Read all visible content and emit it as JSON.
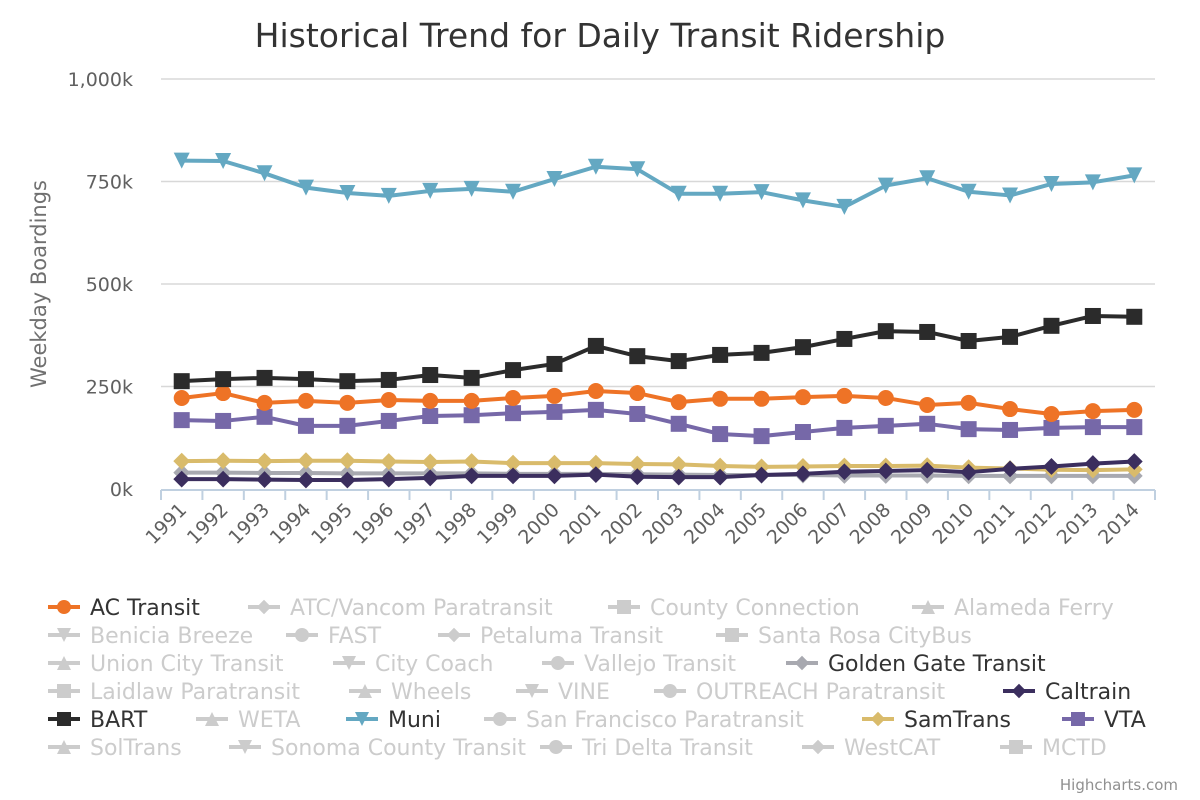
{
  "chart_data": {
    "type": "line",
    "title": "Historical Trend for Daily Transit Ridership",
    "xlabel": "",
    "ylabel": "Weekday Boardings",
    "ylim": [
      0,
      1000000
    ],
    "yticks": [
      {
        "value": 0,
        "label": "0k"
      },
      {
        "value": 250000,
        "label": "250k"
      },
      {
        "value": 500000,
        "label": "500k"
      },
      {
        "value": 750000,
        "label": "750k"
      },
      {
        "value": 1000000,
        "label": "1,000k"
      }
    ],
    "grid": true,
    "legend_position": "bottom",
    "categories": [
      "1991",
      "1992",
      "1993",
      "1994",
      "1995",
      "1996",
      "1997",
      "1998",
      "1999",
      "2000",
      "2001",
      "2002",
      "2003",
      "2004",
      "2005",
      "2006",
      "2007",
      "2008",
      "2009",
      "2010",
      "2011",
      "2012",
      "2013",
      "2014"
    ],
    "series": [
      {
        "name": "AC Transit",
        "visible": true,
        "color": "#ee7326",
        "marker": "circle",
        "values": [
          222000,
          234000,
          210000,
          215000,
          210000,
          217000,
          215000,
          215000,
          222000,
          227000,
          239000,
          234000,
          212000,
          220000,
          220000,
          224000,
          227000,
          222000,
          205000,
          210000,
          195000,
          183000,
          190000,
          193000
        ]
      },
      {
        "name": "ATC/Vancom Paratransit",
        "visible": false,
        "color": "#cccccc",
        "marker": "diamond",
        "values": []
      },
      {
        "name": "County Connection",
        "visible": false,
        "color": "#cccccc",
        "marker": "square",
        "values": []
      },
      {
        "name": "Alameda Ferry",
        "visible": false,
        "color": "#cccccc",
        "marker": "triangle",
        "values": []
      },
      {
        "name": "Benicia Breeze",
        "visible": false,
        "color": "#cccccc",
        "marker": "triangle-down",
        "values": []
      },
      {
        "name": "FAST",
        "visible": false,
        "color": "#cccccc",
        "marker": "circle",
        "values": []
      },
      {
        "name": "Petaluma Transit",
        "visible": false,
        "color": "#cccccc",
        "marker": "diamond",
        "values": []
      },
      {
        "name": "Santa Rosa CityBus",
        "visible": false,
        "color": "#cccccc",
        "marker": "square",
        "values": []
      },
      {
        "name": "Union City Transit",
        "visible": false,
        "color": "#cccccc",
        "marker": "triangle",
        "values": []
      },
      {
        "name": "City Coach",
        "visible": false,
        "color": "#cccccc",
        "marker": "triangle-down",
        "values": []
      },
      {
        "name": "Vallejo Transit",
        "visible": false,
        "color": "#cccccc",
        "marker": "circle",
        "values": []
      },
      {
        "name": "Golden Gate Transit",
        "visible": true,
        "color": "#a8a9b0",
        "marker": "diamond",
        "values": [
          40000,
          40000,
          39000,
          39000,
          38000,
          38000,
          38000,
          38000,
          37000,
          37000,
          37000,
          36000,
          35000,
          34000,
          34000,
          34000,
          33000,
          33000,
          33000,
          32000,
          32000,
          32000,
          32000,
          32000
        ]
      },
      {
        "name": "Laidlaw Paratransit",
        "visible": false,
        "color": "#cccccc",
        "marker": "square",
        "values": []
      },
      {
        "name": "Wheels",
        "visible": false,
        "color": "#cccccc",
        "marker": "triangle",
        "values": []
      },
      {
        "name": "VINE",
        "visible": false,
        "color": "#cccccc",
        "marker": "triangle-down",
        "values": []
      },
      {
        "name": "OUTREACH Paratransit",
        "visible": false,
        "color": "#cccccc",
        "marker": "circle",
        "values": []
      },
      {
        "name": "Caltrain",
        "visible": true,
        "color": "#3b2e5e",
        "marker": "diamond",
        "values": [
          24000,
          24000,
          23000,
          22000,
          22000,
          24000,
          27000,
          32000,
          32000,
          32000,
          35000,
          30000,
          29000,
          29000,
          34000,
          37000,
          42000,
          44000,
          46000,
          41000,
          49000,
          55000,
          62000,
          67000
        ]
      },
      {
        "name": "BART",
        "visible": true,
        "color": "#2b2b2b",
        "marker": "square",
        "values": [
          263000,
          268000,
          271000,
          268000,
          263000,
          266000,
          278000,
          271000,
          290000,
          305000,
          349000,
          324000,
          312000,
          327000,
          332000,
          346000,
          366000,
          385000,
          383000,
          361000,
          371000,
          398000,
          422000,
          420000
        ]
      },
      {
        "name": "WETA",
        "visible": false,
        "color": "#cccccc",
        "marker": "triangle",
        "values": []
      },
      {
        "name": "Muni",
        "visible": true,
        "color": "#64a8c2",
        "marker": "triangle-down",
        "values": [
          801000,
          800000,
          770000,
          735000,
          722000,
          715000,
          727000,
          732000,
          725000,
          756000,
          786000,
          780000,
          720000,
          720000,
          724000,
          704000,
          688000,
          740000,
          758000,
          725000,
          716000,
          744000,
          748000,
          765000
        ]
      },
      {
        "name": "San Francisco Paratransit",
        "visible": false,
        "color": "#cccccc",
        "marker": "circle",
        "values": []
      },
      {
        "name": "SamTrans",
        "visible": true,
        "color": "#d9bb6b",
        "marker": "diamond",
        "values": [
          68000,
          69000,
          68000,
          69000,
          69000,
          67000,
          66000,
          67000,
          63000,
          63000,
          63000,
          61000,
          60000,
          56000,
          54000,
          55000,
          56000,
          56000,
          57000,
          52000,
          50000,
          47000,
          46000,
          48000
        ]
      },
      {
        "name": "VTA",
        "visible": true,
        "color": "#7668a8",
        "marker": "square",
        "values": [
          168000,
          166000,
          176000,
          154000,
          154000,
          166000,
          178000,
          180000,
          185000,
          188000,
          193000,
          183000,
          159000,
          134000,
          129000,
          139000,
          149000,
          154000,
          159000,
          146000,
          144000,
          149000,
          151000,
          151000
        ]
      },
      {
        "name": "SolTrans",
        "visible": false,
        "color": "#cccccc",
        "marker": "triangle",
        "values": []
      },
      {
        "name": "Sonoma County Transit",
        "visible": false,
        "color": "#cccccc",
        "marker": "triangle-down",
        "values": []
      },
      {
        "name": "Tri Delta Transit",
        "visible": false,
        "color": "#cccccc",
        "marker": "circle",
        "values": []
      },
      {
        "name": "WestCAT",
        "visible": false,
        "color": "#cccccc",
        "marker": "diamond",
        "values": []
      },
      {
        "name": "MCTD",
        "visible": false,
        "color": "#cccccc",
        "marker": "square",
        "values": []
      }
    ],
    "legend_rows": [
      [
        "AC Transit",
        "ATC/Vancom Paratransit",
        "County Connection",
        "Alameda Ferry"
      ],
      [
        "Benicia Breeze",
        "FAST",
        "Petaluma Transit",
        "Santa Rosa CityBus"
      ],
      [
        "Union City Transit",
        "City Coach",
        "Vallejo Transit",
        "Golden Gate Transit"
      ],
      [
        "Laidlaw Paratransit",
        "Wheels",
        "VINE",
        "OUTREACH Paratransit",
        "Caltrain"
      ],
      [
        "BART",
        "WETA",
        "Muni",
        "San Francisco Paratransit",
        "SamTrans",
        "VTA"
      ],
      [
        "SolTrans",
        "Sonoma County Transit",
        "Tri Delta Transit",
        "WestCAT",
        "MCTD"
      ]
    ],
    "legend_active_text_color": "#333333",
    "legend_hidden_color": "#cccccc",
    "credits": "Highcharts.com"
  }
}
